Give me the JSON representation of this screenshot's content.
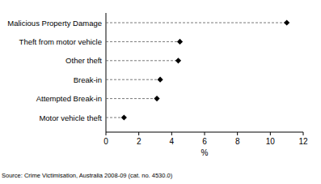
{
  "chart_data": {
    "type": "dot",
    "orientation": "horizontal",
    "categories": [
      "Malicious Property Damage",
      "Theft from motor vehicle",
      "Other theft",
      "Break-in",
      "Attempted Break-in",
      "Motor vehicle theft"
    ],
    "values": [
      11.0,
      4.5,
      4.4,
      3.3,
      3.1,
      1.1
    ],
    "color": "#000000",
    "marker": "diamond",
    "line_style": "dashed",
    "x_label": "%",
    "xlim": [
      0,
      12
    ],
    "xticks": [
      0,
      2,
      4,
      6,
      8,
      10,
      12
    ],
    "source": "Source: Crime Victimisation, Australia 2008-09 (cat. no. 4530.0)"
  }
}
